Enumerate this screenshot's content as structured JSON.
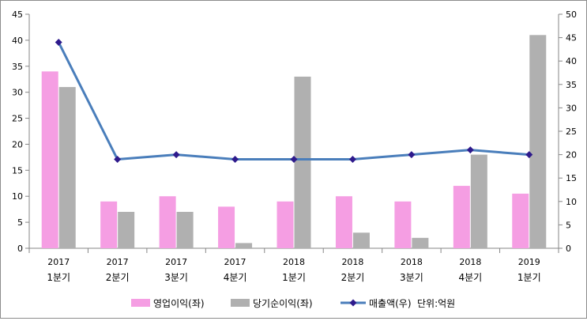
{
  "chart_data": {
    "type": "bar",
    "categories": [
      {
        "year": "2017",
        "quarter": "1분기"
      },
      {
        "year": "2017",
        "quarter": "2분기"
      },
      {
        "year": "2017",
        "quarter": "3분기"
      },
      {
        "year": "2017",
        "quarter": "4분기"
      },
      {
        "year": "2018",
        "quarter": "1분기"
      },
      {
        "year": "2018",
        "quarter": "2분기"
      },
      {
        "year": "2018",
        "quarter": "3분기"
      },
      {
        "year": "2018",
        "quarter": "4분기"
      },
      {
        "year": "2019",
        "quarter": "1분기"
      }
    ],
    "series": [
      {
        "name": "영업이익(좌)",
        "type": "bar",
        "axis": "left",
        "color": "#f59ee3",
        "values": [
          34,
          9,
          10,
          8,
          9,
          10,
          9,
          12,
          10.5
        ]
      },
      {
        "name": "당기순이익(좌)",
        "type": "bar",
        "axis": "left",
        "color": "#b0b0b0",
        "values": [
          31,
          7,
          7,
          1,
          33,
          3,
          2,
          18,
          41
        ]
      },
      {
        "name": "매출액(우)",
        "type": "line",
        "axis": "right",
        "color": "#4a7ebb",
        "marker_color": "#2e1a8c",
        "values": [
          44,
          19,
          20,
          19,
          19,
          19,
          20,
          21,
          20
        ]
      }
    ],
    "y_left": {
      "min": 0,
      "max": 45,
      "step": 5,
      "ticks": [
        "0",
        "5",
        "10",
        "15",
        "20",
        "25",
        "30",
        "35",
        "40",
        "45"
      ]
    },
    "y_right": {
      "min": 0,
      "max": 50,
      "step": 5,
      "ticks": [
        "0",
        "5",
        "10",
        "15",
        "20",
        "25",
        "30",
        "35",
        "40",
        "45",
        "50"
      ]
    },
    "unit_note": "단위:억원",
    "grid": false,
    "legend_position": "bottom"
  }
}
